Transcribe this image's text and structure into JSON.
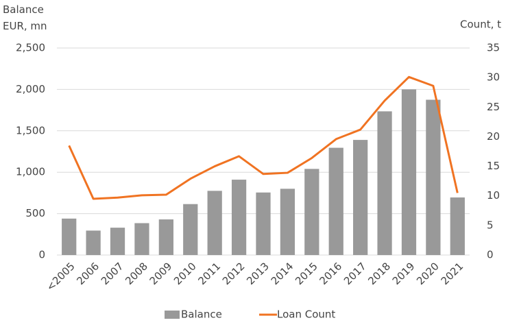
{
  "chart_data": {
    "type": "bar",
    "ylabel": "Balance EUR, mn",
    "y2label": "Count, t",
    "categories": [
      "<2005",
      "2006",
      "2007",
      "2008",
      "2009",
      "2010",
      "2011",
      "2012",
      "2013",
      "2014",
      "2015",
      "2016",
      "2017",
      "2018",
      "2019",
      "2020",
      "2021"
    ],
    "series": [
      {
        "name": "Balance",
        "type": "bar",
        "color": "#999999",
        "axis": "y",
        "values": [
          440,
          295,
          330,
          385,
          430,
          615,
          775,
          910,
          755,
          800,
          1040,
          1295,
          1390,
          1735,
          2000,
          1875,
          695
        ]
      },
      {
        "name": "Loan Count",
        "type": "line",
        "color": "#f07322",
        "axis": "y2",
        "values": [
          18.5,
          9.5,
          9.7,
          10.1,
          10.2,
          12.9,
          15.0,
          16.7,
          13.7,
          13.9,
          16.4,
          19.6,
          21.2,
          26.1,
          30.1,
          28.6,
          10.5
        ]
      }
    ],
    "ylim": [
      0,
      2500
    ],
    "yticks": [
      0,
      500,
      {
        "value": 1000,
        "label": "1,000"
      },
      {
        "value": 1500,
        "label": "1,500"
      },
      {
        "value": 2000,
        "label": "2,000"
      },
      {
        "value": 2500,
        "label": "2,500"
      }
    ],
    "y2lim": [
      0,
      35
    ],
    "y2ticks": [
      0,
      5,
      10,
      15,
      20,
      25,
      30,
      35
    ],
    "grid": true
  }
}
